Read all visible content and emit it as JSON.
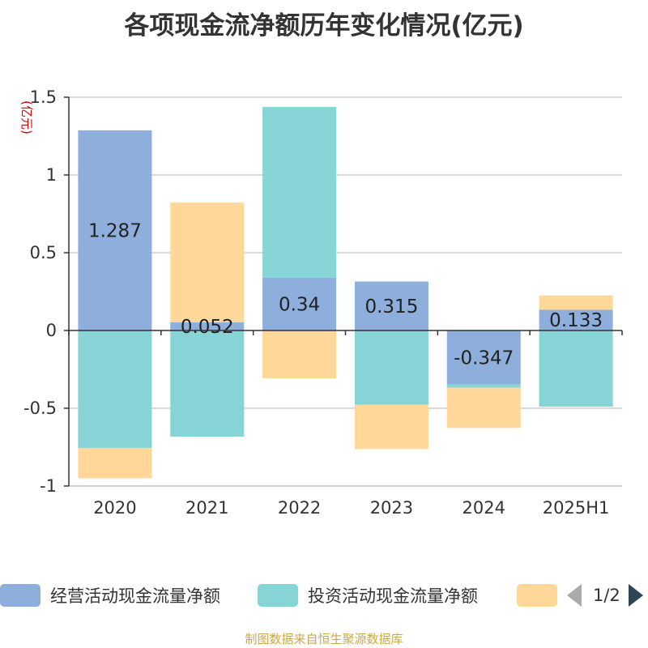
{
  "title": "各项现金流净额历年变化情况(亿元)",
  "source": "制图数据来自恒生聚源数据库",
  "legend_pager": "1/2",
  "chart_data": {
    "type": "bar",
    "stacked": true,
    "unit_label": "(亿元)",
    "categories": [
      "2020",
      "2021",
      "2022",
      "2023",
      "2024",
      "2025H1"
    ],
    "ylim": [
      -1,
      1.5
    ],
    "yticks": [
      "1.5",
      "1",
      "0.5",
      "0",
      "-0.5",
      "-1"
    ],
    "ytick_values": [
      1.5,
      1,
      0.5,
      0,
      -0.5,
      -1
    ],
    "grid": true,
    "legend_position": "bottom",
    "series": [
      {
        "name": "经营活动现金流量净额",
        "color": "#8eaedb",
        "values": [
          1.287,
          0.052,
          0.34,
          0.315,
          -0.347,
          0.133
        ],
        "labels": [
          "1.287",
          "0.052",
          "0.34",
          "0.315",
          "-0.347",
          "0.133"
        ]
      },
      {
        "name": "投资活动现金流量净额",
        "color": "#86d4d6",
        "values": [
          -0.755,
          -0.683,
          1.097,
          -0.478,
          -0.02,
          -0.49
        ]
      },
      {
        "name": "",
        "color": "#ffd899",
        "values": [
          -0.195,
          0.77,
          -0.307,
          -0.285,
          -0.26,
          0.092
        ]
      }
    ]
  }
}
